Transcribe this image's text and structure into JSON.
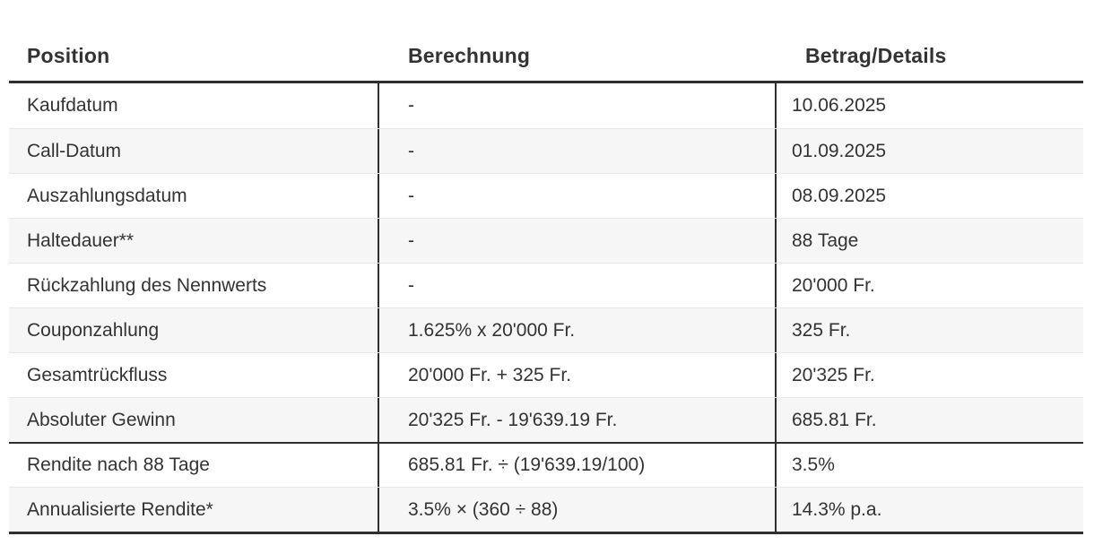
{
  "colors": {
    "border_dark": "#2f2f2f",
    "separator_light": "#e8e8e8",
    "row_alt_bg": "#f6f6f6",
    "text_color": "#333333",
    "page_bg": "#ffffff"
  },
  "table": {
    "columns": [
      "Position",
      "Berechnung",
      "Betrag/Details"
    ],
    "rows": [
      {
        "position": "Kaufdatum",
        "berechnung": "-",
        "betrag": "10.06.2025"
      },
      {
        "position": "Call-Datum",
        "berechnung": "-",
        "betrag": "01.09.2025"
      },
      {
        "position": "Auszahlungsdatum",
        "berechnung": "-",
        "betrag": "08.09.2025"
      },
      {
        "position": "Haltedauer**",
        "berechnung": "-",
        "betrag": "88 Tage"
      },
      {
        "position": "Rückzahlung des Nennwerts",
        "berechnung": "-",
        "betrag": "20'000 Fr."
      },
      {
        "position": "Couponzahlung",
        "berechnung": "1.625% x 20'000 Fr.",
        "betrag": "325 Fr."
      },
      {
        "position": "Gesamtrückfluss",
        "berechnung": "20'000 Fr. + 325 Fr.",
        "betrag": "20'325 Fr."
      },
      {
        "position": "Absoluter Gewinn",
        "berechnung": "20'325 Fr. - 19'639.19 Fr.",
        "betrag": "685.81 Fr."
      },
      {
        "position": "Rendite nach 88 Tage",
        "berechnung": "685.81 Fr. ÷ (19'639.19/100)",
        "betrag": "3.5%",
        "thick_top": true
      },
      {
        "position": "Annualisierte Rendite*",
        "berechnung": "3.5% × (360 ÷ 88)",
        "betrag": "14.3% p.a."
      }
    ]
  }
}
